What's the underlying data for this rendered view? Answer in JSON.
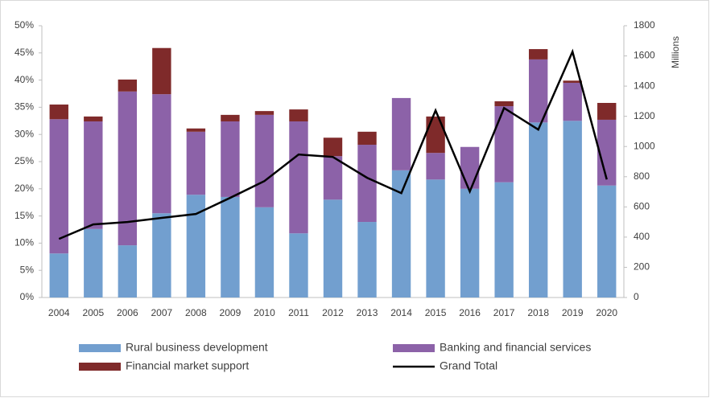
{
  "chart_data": {
    "type": "stacked-bar-line",
    "categories": [
      "2004",
      "2005",
      "2006",
      "2007",
      "2008",
      "2009",
      "2010",
      "2011",
      "2012",
      "2013",
      "2014",
      "2015",
      "2016",
      "2017",
      "2018",
      "2019",
      "2020"
    ],
    "series": [
      {
        "name": "Rural business development",
        "color": "#729fcf",
        "values": [
          8.1,
          12.6,
          9.6,
          15.5,
          18.9,
          18.5,
          16.6,
          11.8,
          18.0,
          13.9,
          23.4,
          21.7,
          20.0,
          21.2,
          32.2,
          32.5,
          20.6
        ]
      },
      {
        "name": "Banking and financial services",
        "color": "#8c62a8",
        "values": [
          24.7,
          19.8,
          28.3,
          21.9,
          11.6,
          13.9,
          17.0,
          20.6,
          8.0,
          14.2,
          13.3,
          4.9,
          7.7,
          14.0,
          11.6,
          7.0,
          12.1
        ]
      },
      {
        "name": "Financial market support",
        "color": "#7f2a2a",
        "values": [
          2.7,
          0.9,
          2.2,
          8.5,
          0.6,
          1.2,
          0.7,
          2.2,
          3.4,
          2.4,
          0,
          6.7,
          0,
          0.9,
          1.9,
          0.4,
          3.1
        ]
      },
      {
        "name": "Grand Total",
        "color": "#000000",
        "axis": "y2",
        "values": [
          388,
          484,
          500,
          527,
          553,
          660,
          771,
          947,
          931,
          793,
          691,
          1239,
          702,
          1255,
          1112,
          1628,
          782
        ]
      }
    ],
    "ylim": [
      0,
      50
    ],
    "yticks": [
      {
        "value": 0,
        "label": "0%"
      },
      {
        "value": 5,
        "label": "5%"
      },
      {
        "value": 10,
        "label": "10%"
      },
      {
        "value": 15,
        "label": "15%"
      },
      {
        "value": 20,
        "label": "20%"
      },
      {
        "value": 25,
        "label": "25%"
      },
      {
        "value": 30,
        "label": "30%"
      },
      {
        "value": 35,
        "label": "35%"
      },
      {
        "value": 40,
        "label": "40%"
      },
      {
        "value": 45,
        "label": "45%"
      },
      {
        "value": 50,
        "label": "50%"
      }
    ],
    "y2lim": [
      0,
      1800
    ],
    "y2ticks": [
      0,
      200,
      400,
      600,
      800,
      1000,
      1200,
      1400,
      1600,
      1800
    ],
    "y2_label": "Millions",
    "legend": "bottom"
  }
}
